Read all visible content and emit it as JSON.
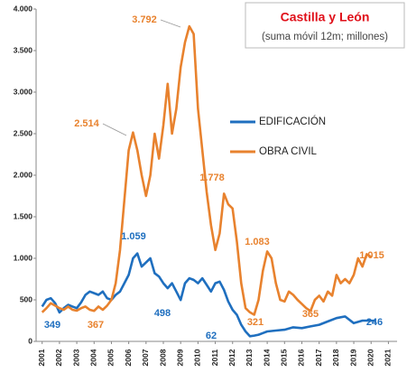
{
  "chart_data": {
    "type": "line",
    "title": "Castilla y León",
    "subtitle": "(suma móvil 12m; millones)",
    "xlim": [
      2000.65,
      2021.5
    ],
    "xticks": [
      2001,
      2002,
      2003,
      2004,
      2005,
      2006,
      2007,
      2008,
      2009,
      2010,
      2011,
      2012,
      2013,
      2014,
      2015,
      2016,
      2017,
      2018,
      2019,
      2020,
      2021
    ],
    "ylim": [
      0,
      4000
    ],
    "yticks": [
      0,
      500,
      {
        "value": 1000,
        "label": "1.000"
      },
      {
        "value": 1500,
        "label": "1.500"
      },
      {
        "value": 2000,
        "label": "2.000"
      },
      {
        "value": 2500,
        "label": "2.500"
      },
      {
        "value": 3000,
        "label": "3.000"
      },
      {
        "value": 3500,
        "label": "3.500"
      },
      {
        "value": 4000,
        "label": "4.000"
      }
    ],
    "grid": false,
    "series": [
      {
        "name": "EDIFICACIÓN",
        "color": "#1f6fbf",
        "x": [
          2001,
          2001.25,
          2001.5,
          2001.75,
          2002,
          2002.25,
          2002.5,
          2002.75,
          2003,
          2003.25,
          2003.5,
          2003.75,
          2004,
          2004.25,
          2004.5,
          2004.75,
          2005,
          2005.25,
          2005.5,
          2005.75,
          2006,
          2006.25,
          2006.5,
          2006.75,
          2007,
          2007.25,
          2007.5,
          2007.75,
          2008,
          2008.25,
          2008.5,
          2008.75,
          2009,
          2009.25,
          2009.5,
          2009.75,
          2010,
          2010.25,
          2010.5,
          2010.75,
          2011,
          2011.25,
          2011.5,
          2011.75,
          2012,
          2012.25,
          2012.5,
          2012.75,
          2013,
          2013.25,
          2013.5,
          2013.75,
          2014,
          2014.5,
          2015,
          2015.5,
          2016,
          2016.5,
          2017,
          2017.5,
          2018,
          2018.5,
          2019,
          2019.5,
          2020,
          2020.25
        ],
        "values": [
          420,
          500,
          520,
          460,
          349,
          400,
          440,
          420,
          400,
          470,
          560,
          600,
          580,
          560,
          600,
          520,
          500,
          560,
          600,
          700,
          800,
          1000,
          1059,
          900,
          950,
          1000,
          820,
          780,
          700,
          640,
          700,
          600,
          498,
          700,
          760,
          740,
          700,
          760,
          680,
          600,
          700,
          720,
          620,
          480,
          380,
          320,
          200,
          120,
          62,
          70,
          80,
          100,
          120,
          130,
          140,
          170,
          160,
          180,
          200,
          240,
          280,
          300,
          220,
          250,
          250,
          246
        ]
      },
      {
        "name": "OBRA CIVIL",
        "color": "#e8822e",
        "x": [
          2001,
          2001.25,
          2001.5,
          2001.75,
          2002,
          2002.25,
          2002.5,
          2002.75,
          2003,
          2003.25,
          2003.5,
          2003.75,
          2004,
          2004.25,
          2004.5,
          2004.75,
          2005,
          2005.25,
          2005.5,
          2005.75,
          2006,
          2006.25,
          2006.5,
          2006.75,
          2007,
          2007.25,
          2007.5,
          2007.75,
          2008,
          2008.25,
          2008.5,
          2008.75,
          2009,
          2009.25,
          2009.5,
          2009.75,
          2010,
          2010.25,
          2010.5,
          2010.75,
          2011,
          2011.25,
          2011.5,
          2011.75,
          2012,
          2012.25,
          2012.5,
          2012.75,
          2013,
          2013.25,
          2013.5,
          2013.75,
          2014,
          2014.25,
          2014.5,
          2014.75,
          2015,
          2015.25,
          2015.5,
          2015.75,
          2016,
          2016.25,
          2016.5,
          2016.75,
          2017,
          2017.25,
          2017.5,
          2017.75,
          2018,
          2018.25,
          2018.5,
          2018.75,
          2019,
          2019.25,
          2019.5,
          2019.75,
          2020
        ],
        "values": [
          350,
          400,
          460,
          430,
          400,
          380,
          420,
          380,
          370,
          400,
          420,
          380,
          367,
          420,
          380,
          430,
          500,
          700,
          1100,
          1700,
          2300,
          2514,
          2300,
          2000,
          1750,
          2000,
          2500,
          2200,
          2600,
          3100,
          2500,
          2800,
          3300,
          3600,
          3792,
          3700,
          2800,
          2300,
          1800,
          1400,
          1100,
          1300,
          1778,
          1650,
          1600,
          1200,
          700,
          400,
          350,
          321,
          500,
          850,
          1083,
          1000,
          700,
          500,
          480,
          600,
          560,
          500,
          450,
          400,
          365,
          500,
          550,
          480,
          600,
          550,
          800,
          700,
          750,
          700,
          800,
          1000,
          900,
          1050,
          1015
        ]
      }
    ],
    "annotations": [
      {
        "label": "349",
        "value": 349,
        "color": "#1f6fbf"
      },
      {
        "label": "367",
        "value": 367,
        "color": "#e8822e"
      },
      {
        "label": "1.059",
        "value": 1059,
        "color": "#1f6fbf"
      },
      {
        "label": "2.514",
        "value": 2514,
        "color": "#e8822e"
      },
      {
        "label": "3.792",
        "value": 3792,
        "color": "#e8822e"
      },
      {
        "label": "498",
        "value": 498,
        "color": "#1f6fbf"
      },
      {
        "label": "1.778",
        "value": 1778,
        "color": "#e8822e"
      },
      {
        "label": "62",
        "value": 62,
        "color": "#1f6fbf"
      },
      {
        "label": "1.083",
        "value": 1083,
        "color": "#e8822e"
      },
      {
        "label": "321",
        "value": 321,
        "color": "#e8822e"
      },
      {
        "label": "365",
        "value": 365,
        "color": "#e8822e"
      },
      {
        "label": "1.015",
        "value": 1015,
        "color": "#e8822e"
      },
      {
        "label": "246",
        "value": 246,
        "color": "#1f6fbf"
      }
    ]
  }
}
